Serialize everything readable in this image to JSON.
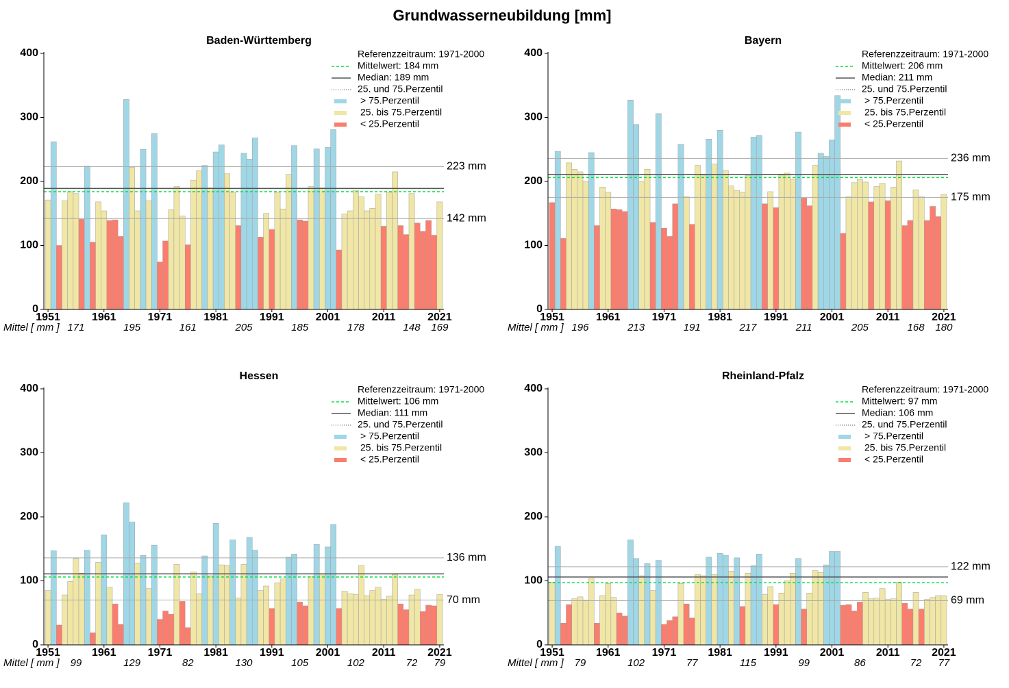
{
  "title": "Grundwasserneubildung [mm]",
  "chart_data": [
    {
      "type": "bar",
      "title": "Baden-Württemberg",
      "x": [
        1951,
        1952,
        1953,
        1954,
        1955,
        1956,
        1957,
        1958,
        1959,
        1960,
        1961,
        1962,
        1963,
        1964,
        1965,
        1966,
        1967,
        1968,
        1969,
        1970,
        1971,
        1972,
        1973,
        1974,
        1975,
        1976,
        1977,
        1978,
        1979,
        1980,
        1981,
        1982,
        1983,
        1984,
        1985,
        1986,
        1987,
        1988,
        1989,
        1990,
        1991,
        1992,
        1993,
        1994,
        1995,
        1996,
        1997,
        1998,
        1999,
        2000,
        2001,
        2002,
        2003,
        2004,
        2005,
        2006,
        2007,
        2008,
        2009,
        2010,
        2011,
        2012,
        2013,
        2014,
        2015,
        2016,
        2017,
        2018,
        2019,
        2020,
        2021
      ],
      "values": [
        171,
        262,
        100,
        170,
        184,
        181,
        141,
        224,
        105,
        168,
        154,
        139,
        140,
        114,
        328,
        222,
        154,
        250,
        170,
        275,
        74,
        107,
        156,
        192,
        146,
        101,
        202,
        217,
        225,
        190,
        246,
        257,
        212,
        183,
        131,
        244,
        235,
        268,
        113,
        150,
        125,
        183,
        157,
        211,
        256,
        140,
        138,
        192,
        251,
        190,
        253,
        281,
        93,
        149,
        154,
        186,
        176,
        154,
        158,
        180,
        130,
        183,
        215,
        131,
        117,
        181,
        135,
        122,
        139,
        116,
        168
      ],
      "xlim": [
        1950.5,
        2021.5
      ],
      "xticks": [
        1951,
        1961,
        1971,
        1981,
        1991,
        2001,
        2011,
        2021
      ],
      "ylim": [
        0,
        400
      ],
      "yticks": [
        0,
        100,
        200,
        300,
        400
      ],
      "reference_period": "Referenzzeitraum: 1971-2000",
      "mean": {
        "value": 184,
        "label": "Mittelwert:  184 mm",
        "color": "#00e040"
      },
      "median": {
        "value": 189,
        "label": "Median:  189 mm",
        "color": "#555555"
      },
      "percentiles": {
        "label": "25. und 75.Perzentil",
        "p25": 142,
        "p75": 223,
        "p25_label": "142 mm",
        "p75_label": "223 mm",
        "color": "#aaaaaa"
      },
      "series": [
        {
          "name": "> 75.Perzentil",
          "color": "#9fd7e6"
        },
        {
          "name": "25. bis 75.Perzentil",
          "color": "#f0e6a6"
        },
        {
          "name": "< 25.Perzentil",
          "color": "#fa7d6e"
        }
      ],
      "decade_means": {
        "label": "Mittel [ mm ]",
        "values": [
          171,
          195,
          161,
          205,
          185,
          178,
          148,
          169
        ]
      }
    },
    {
      "type": "bar",
      "title": "Bayern",
      "x": [
        1951,
        1952,
        1953,
        1954,
        1955,
        1956,
        1957,
        1958,
        1959,
        1960,
        1961,
        1962,
        1963,
        1964,
        1965,
        1966,
        1967,
        1968,
        1969,
        1970,
        1971,
        1972,
        1973,
        1974,
        1975,
        1976,
        1977,
        1978,
        1979,
        1980,
        1981,
        1982,
        1983,
        1984,
        1985,
        1986,
        1987,
        1988,
        1989,
        1990,
        1991,
        1992,
        1993,
        1994,
        1995,
        1996,
        1997,
        1998,
        1999,
        2000,
        2001,
        2002,
        2003,
        2004,
        2005,
        2006,
        2007,
        2008,
        2009,
        2010,
        2011,
        2012,
        2013,
        2014,
        2015,
        2016,
        2017,
        2018,
        2019,
        2020,
        2021
      ],
      "values": [
        167,
        247,
        111,
        229,
        219,
        215,
        200,
        245,
        131,
        191,
        183,
        157,
        156,
        153,
        327,
        289,
        200,
        219,
        136,
        306,
        127,
        114,
        165,
        258,
        176,
        133,
        225,
        210,
        266,
        227,
        280,
        217,
        193,
        186,
        183,
        209,
        269,
        272,
        165,
        184,
        159,
        210,
        213,
        204,
        277,
        174,
        162,
        225,
        244,
        239,
        265,
        334,
        119,
        176,
        198,
        203,
        199,
        168,
        192,
        197,
        170,
        191,
        232,
        131,
        139,
        187,
        176,
        139,
        161,
        145,
        180
      ],
      "xlim": [
        1950.5,
        2021.5
      ],
      "xticks": [
        1951,
        1961,
        1971,
        1981,
        1991,
        2001,
        2011,
        2021
      ],
      "ylim": [
        0,
        400
      ],
      "yticks": [
        0,
        100,
        200,
        300,
        400
      ],
      "reference_period": "Referenzzeitraum: 1971-2000",
      "mean": {
        "value": 206,
        "label": "Mittelwert:  206 mm",
        "color": "#00e040"
      },
      "median": {
        "value": 211,
        "label": "Median:  211 mm",
        "color": "#555555"
      },
      "percentiles": {
        "label": "25. und 75.Perzentil",
        "p25": 175,
        "p75": 236,
        "p25_label": "175 mm",
        "p75_label": "236 mm",
        "color": "#aaaaaa"
      },
      "series": [
        {
          "name": "> 75.Perzentil",
          "color": "#9fd7e6"
        },
        {
          "name": "25. bis 75.Perzentil",
          "color": "#f0e6a6"
        },
        {
          "name": "< 25.Perzentil",
          "color": "#fa7d6e"
        }
      ],
      "decade_means": {
        "label": "Mittel [ mm ]",
        "values": [
          196,
          213,
          191,
          217,
          211,
          205,
          168,
          180
        ]
      }
    },
    {
      "type": "bar",
      "title": "Hessen",
      "x": [
        1951,
        1952,
        1953,
        1954,
        1955,
        1956,
        1957,
        1958,
        1959,
        1960,
        1961,
        1962,
        1963,
        1964,
        1965,
        1966,
        1967,
        1968,
        1969,
        1970,
        1971,
        1972,
        1973,
        1974,
        1975,
        1976,
        1977,
        1978,
        1979,
        1980,
        1981,
        1982,
        1983,
        1984,
        1985,
        1986,
        1987,
        1988,
        1989,
        1990,
        1991,
        1992,
        1993,
        1994,
        1995,
        1996,
        1997,
        1998,
        1999,
        2000,
        2001,
        2002,
        2003,
        2004,
        2005,
        2006,
        2007,
        2008,
        2009,
        2010,
        2011,
        2012,
        2013,
        2014,
        2015,
        2016,
        2017,
        2018,
        2019,
        2020,
        2021
      ],
      "values": [
        85,
        147,
        31,
        78,
        99,
        135,
        112,
        148,
        19,
        129,
        172,
        90,
        64,
        32,
        222,
        192,
        128,
        140,
        88,
        156,
        40,
        53,
        48,
        126,
        68,
        27,
        114,
        80,
        139,
        108,
        190,
        125,
        124,
        164,
        73,
        126,
        168,
        148,
        85,
        92,
        57,
        97,
        103,
        137,
        142,
        67,
        61,
        107,
        157,
        111,
        153,
        188,
        57,
        84,
        80,
        79,
        124,
        77,
        85,
        90,
        71,
        76,
        110,
        64,
        55,
        78,
        87,
        52,
        62,
        61,
        79
      ],
      "xlim": [
        1950.5,
        2021.5
      ],
      "xticks": [
        1951,
        1961,
        1971,
        1981,
        1991,
        2001,
        2011,
        2021
      ],
      "ylim": [
        0,
        400
      ],
      "yticks": [
        0,
        100,
        200,
        300,
        400
      ],
      "reference_period": "Referenzzeitraum: 1971-2000",
      "mean": {
        "value": 106,
        "label": "Mittelwert:  106 mm",
        "color": "#00e040"
      },
      "median": {
        "value": 111,
        "label": "Median:  111 mm",
        "color": "#555555"
      },
      "percentiles": {
        "label": "25. und 75.Perzentil",
        "p25": 70,
        "p75": 136,
        "p25_label": "70 mm",
        "p75_label": "136 mm",
        "color": "#aaaaaa"
      },
      "series": [
        {
          "name": "> 75.Perzentil",
          "color": "#9fd7e6"
        },
        {
          "name": "25. bis 75.Perzentil",
          "color": "#f0e6a6"
        },
        {
          "name": "< 25.Perzentil",
          "color": "#fa7d6e"
        }
      ],
      "decade_means": {
        "label": "Mittel [ mm ]",
        "values": [
          99,
          129,
          82,
          130,
          105,
          102,
          72,
          79
        ]
      }
    },
    {
      "type": "bar",
      "title": "Rheinland-Pfalz",
      "x": [
        1951,
        1952,
        1953,
        1954,
        1955,
        1956,
        1957,
        1958,
        1959,
        1960,
        1961,
        1962,
        1963,
        1964,
        1965,
        1966,
        1967,
        1968,
        1969,
        1970,
        1971,
        1972,
        1973,
        1974,
        1975,
        1976,
        1977,
        1978,
        1979,
        1980,
        1981,
        1982,
        1983,
        1984,
        1985,
        1986,
        1987,
        1988,
        1989,
        1990,
        1991,
        1992,
        1993,
        1994,
        1995,
        1996,
        1997,
        1998,
        1999,
        2000,
        2001,
        2002,
        2003,
        2004,
        2005,
        2006,
        2007,
        2008,
        2009,
        2010,
        2011,
        2012,
        2013,
        2014,
        2015,
        2016,
        2017,
        2018,
        2019,
        2020,
        2021
      ],
      "values": [
        98,
        154,
        34,
        63,
        72,
        75,
        70,
        104,
        34,
        77,
        96,
        74,
        50,
        45,
        164,
        135,
        108,
        127,
        85,
        132,
        32,
        38,
        44,
        96,
        64,
        42,
        110,
        108,
        137,
        110,
        143,
        140,
        115,
        136,
        60,
        112,
        124,
        142,
        79,
        91,
        63,
        81,
        100,
        112,
        135,
        56,
        81,
        116,
        113,
        125,
        146,
        146,
        62,
        63,
        53,
        67,
        82,
        72,
        73,
        88,
        71,
        72,
        98,
        65,
        56,
        82,
        56,
        71,
        74,
        77,
        77
      ],
      "xlim": [
        1950.5,
        2021.5
      ],
      "xticks": [
        1951,
        1961,
        1971,
        1981,
        1991,
        2001,
        2011,
        2021
      ],
      "ylim": [
        0,
        400
      ],
      "yticks": [
        0,
        100,
        200,
        300,
        400
      ],
      "reference_period": "Referenzzeitraum: 1971-2000",
      "mean": {
        "value": 97,
        "label": "Mittelwert:  97 mm",
        "color": "#00e040"
      },
      "median": {
        "value": 106,
        "label": "Median:  106 mm",
        "color": "#555555"
      },
      "percentiles": {
        "label": "25. und 75.Perzentil",
        "p25": 69,
        "p75": 122,
        "p25_label": "69 mm",
        "p75_label": "122 mm",
        "color": "#aaaaaa"
      },
      "series": [
        {
          "name": "> 75.Perzentil",
          "color": "#9fd7e6"
        },
        {
          "name": "25. bis 75.Perzentil",
          "color": "#f0e6a6"
        },
        {
          "name": "< 25.Perzentil",
          "color": "#fa7d6e"
        }
      ],
      "decade_means": {
        "label": "Mittel [ mm ]",
        "values": [
          79,
          102,
          77,
          115,
          99,
          86,
          72,
          77
        ]
      }
    }
  ]
}
